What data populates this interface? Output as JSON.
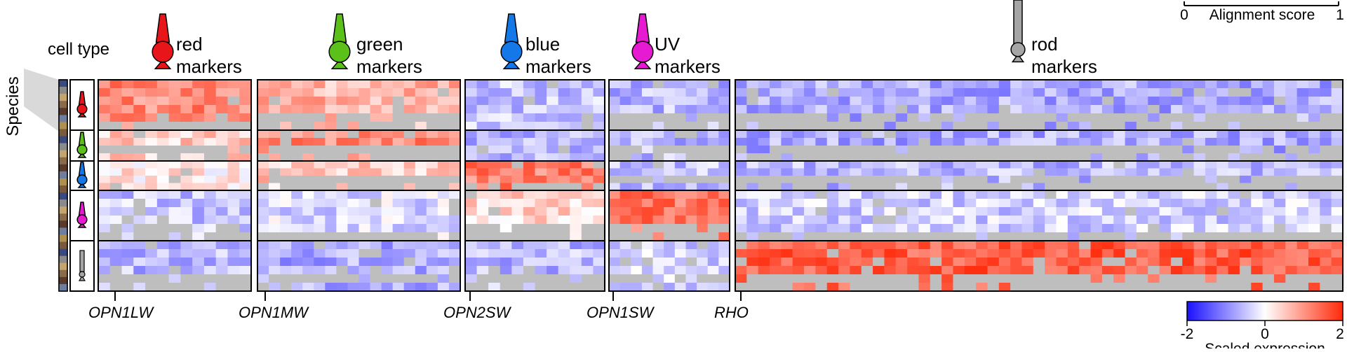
{
  "labels": {
    "species": "Species",
    "cell_type": "cell type",
    "alignment_score": "Alignment score",
    "alignment_min": "0",
    "alignment_max": "1",
    "scaled_expression": "Scaled expression",
    "scale_min": "-2",
    "scale_mid": "0",
    "scale_max": "2"
  },
  "marker_groups": [
    {
      "name": "red",
      "line1": "red",
      "line2": "markers",
      "color": "#e8151b",
      "gene": "OPN1LW"
    },
    {
      "name": "green",
      "line1": "green",
      "line2": "markers",
      "color": "#5cc01a",
      "gene": "OPN1MW"
    },
    {
      "name": "blue",
      "line1": "blue",
      "line2": "markers",
      "color": "#1478e8",
      "gene": "OPN2SW"
    },
    {
      "name": "uv",
      "line1": "UV",
      "line2": "markers",
      "color": "#e61ad0",
      "gene": "OPN1SW"
    },
    {
      "name": "rod",
      "line1": "rod",
      "line2": "markers",
      "color": "#a5a5a5",
      "gene": "RHO"
    }
  ],
  "cell_types": [
    "red",
    "green",
    "blue",
    "UV",
    "rod"
  ],
  "colors": {
    "low": "#1a10ff",
    "mid": "#ffffff",
    "high": "#ff2a0a",
    "missing": "#bebebe",
    "species_strip": [
      "#3a4a7e",
      "#8a8a8a",
      "#c4a46e",
      "#8b6a4a",
      "#5a3a2a",
      "#6e7e9e",
      "#b0904e",
      "#7a5a3a"
    ]
  },
  "chart_data": {
    "type": "heatmap",
    "value_range": [
      -2,
      2
    ],
    "color_scale": "blue-white-red (Scaled expression)",
    "x_groups": [
      "red markers",
      "green markers",
      "blue markers",
      "UV markers",
      "rod markers"
    ],
    "x_tick_labels": [
      "OPN1LW",
      "OPN1MW",
      "OPN2SW",
      "OPN1SW",
      "RHO"
    ],
    "y_groups": [
      "red",
      "green",
      "blue",
      "UV",
      "rod"
    ],
    "block_means": [
      [
        1.1,
        0.7,
        -0.5,
        -0.6,
        -0.7
      ],
      [
        0.5,
        1.1,
        -0.6,
        -0.6,
        -0.7
      ],
      [
        0.2,
        0.5,
        1.2,
        -0.5,
        -0.6
      ],
      [
        -0.5,
        -0.3,
        0.4,
        1.3,
        -0.4
      ],
      [
        -0.6,
        -0.7,
        -0.6,
        -0.4,
        1.5
      ]
    ],
    "legend": [
      "Scaled expression",
      "Alignment score"
    ]
  }
}
